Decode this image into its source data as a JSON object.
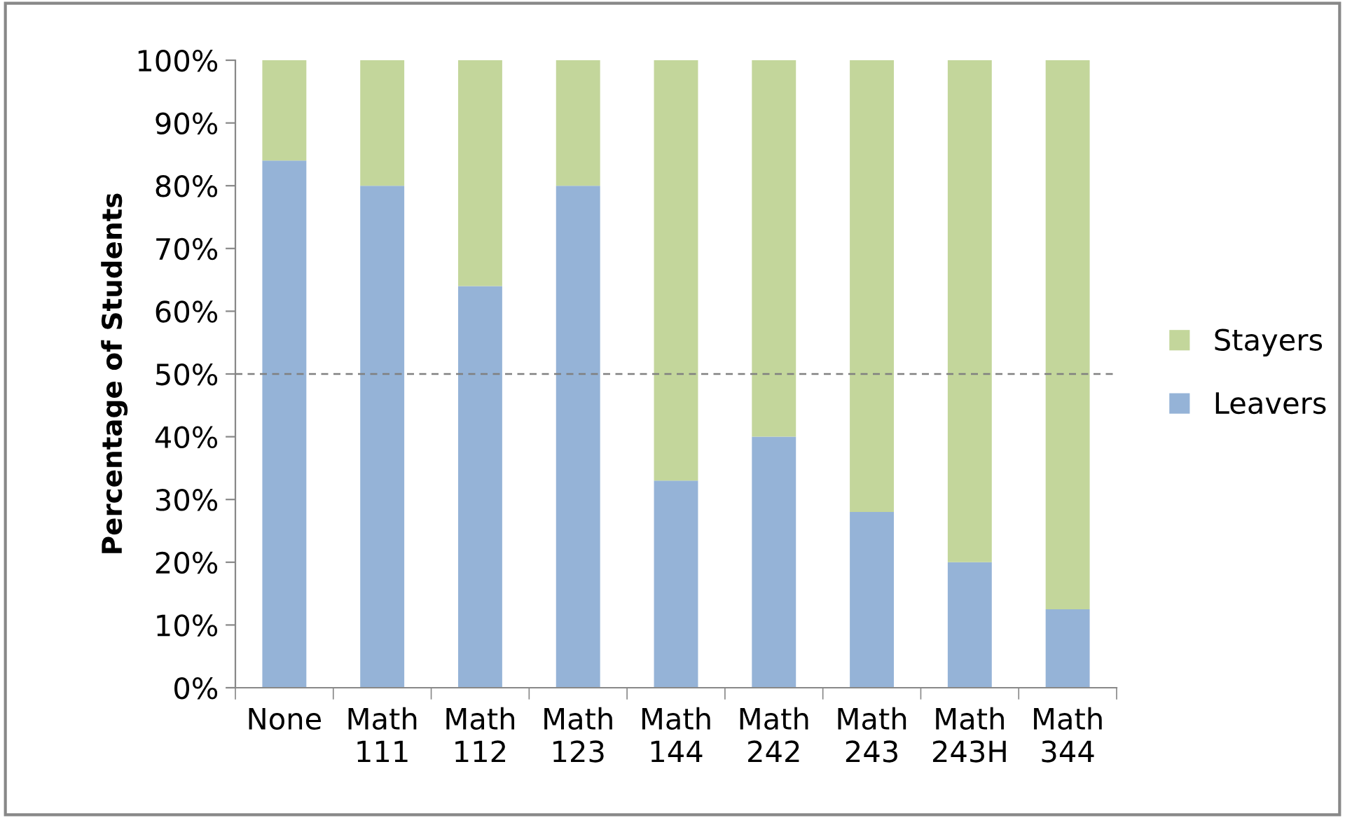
{
  "chart_data": {
    "type": "bar",
    "stacked": true,
    "ylabel": "Percentage of Students",
    "categories": [
      "None",
      "Math\n111",
      "Math\n112",
      "Math\n123",
      "Math\n144",
      "Math\n242",
      "Math\n243",
      "Math\n243H",
      "Math\n344"
    ],
    "series": [
      {
        "name": "Leavers",
        "color": "#95b3d7",
        "values": [
          84,
          80,
          64,
          80,
          33,
          40,
          28,
          20,
          12.5
        ]
      },
      {
        "name": "Stayers",
        "color": "#c3d69b",
        "values": [
          16,
          20,
          36,
          20,
          67,
          60,
          72,
          80,
          87.5
        ]
      }
    ],
    "ylim": [
      0,
      100
    ],
    "yticks": [
      {
        "value": 0,
        "label": "0%"
      },
      {
        "value": 10,
        "label": "10%"
      },
      {
        "value": 20,
        "label": "20%"
      },
      {
        "value": 30,
        "label": "30%"
      },
      {
        "value": 40,
        "label": "40%"
      },
      {
        "value": 50,
        "label": "50%"
      },
      {
        "value": 60,
        "label": "60%"
      },
      {
        "value": 70,
        "label": "70%"
      },
      {
        "value": 80,
        "label": "80%"
      },
      {
        "value": 90,
        "label": "90%"
      },
      {
        "value": 100,
        "label": "100%"
      }
    ],
    "ref_lines": [
      {
        "axis": "y",
        "value": 50,
        "color": "#808080",
        "line_style": "dashed"
      }
    ],
    "grid": false,
    "legend": "right"
  }
}
